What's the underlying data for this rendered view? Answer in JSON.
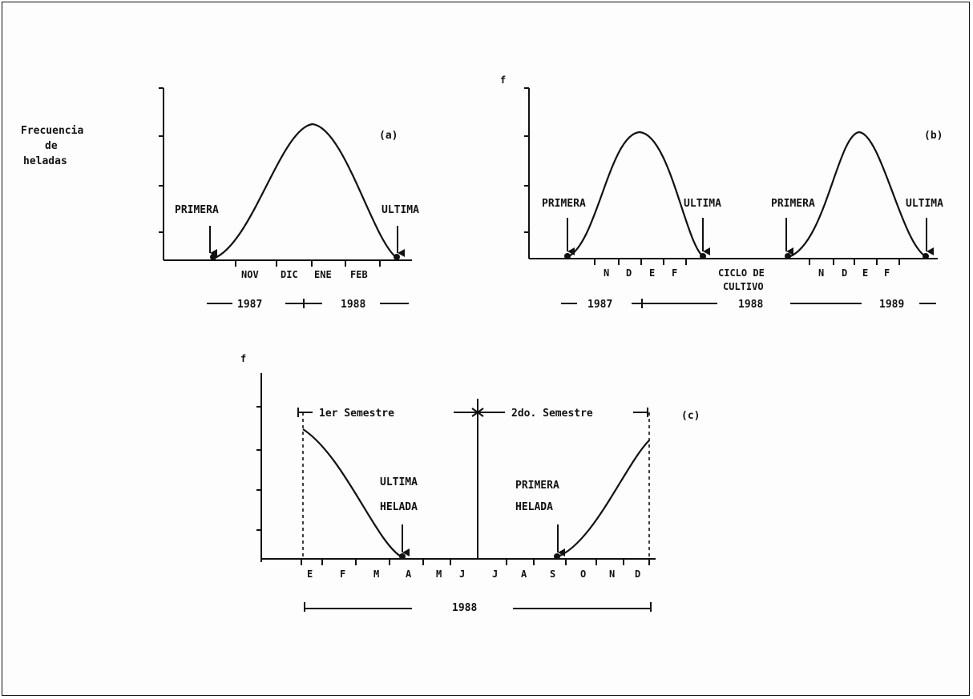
{
  "ylabel": [
    "Frecuencia",
    "de",
    "heladas"
  ],
  "panel_a": {
    "label": "(a)",
    "first": "PRIMERA",
    "last": "ULTIMA",
    "months": [
      "NOV",
      "DIC",
      "ENE",
      "FEB"
    ],
    "years": [
      "1987",
      "1988"
    ]
  },
  "panel_b": {
    "label": "(b)",
    "f": "f",
    "first_1": "PRIMERA",
    "last_1": "ULTIMA",
    "first_2": "PRIMERA",
    "last_2": "ULTIMA",
    "months_1": [
      "N",
      "D",
      "E",
      "F"
    ],
    "cycle": [
      "CICLO DE",
      "CULTIVO"
    ],
    "months_2": [
      "N",
      "D",
      "E",
      "F"
    ],
    "years": [
      "1987",
      "1988",
      "1989"
    ]
  },
  "panel_c": {
    "label": "(c)",
    "f": "f",
    "sem1": "1er Semestre",
    "sem2": "2do. Semestre",
    "last_frost": [
      "ULTIMA",
      "HELADA"
    ],
    "first_frost": [
      "PRIMERA",
      "HELADA"
    ],
    "months": [
      "E",
      "F",
      "M",
      "A",
      "M",
      "J",
      "J",
      "A",
      "S",
      "O",
      "N",
      "D"
    ],
    "year": "1988"
  }
}
